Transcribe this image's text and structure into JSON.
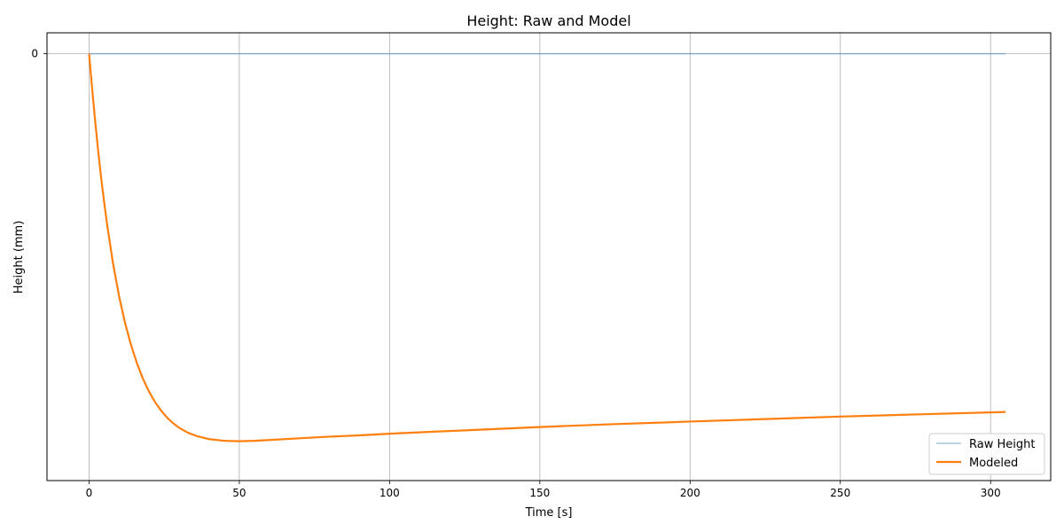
{
  "chart_data": {
    "type": "line",
    "title": "Height: Raw and Model",
    "xlabel": "Time [s]",
    "ylabel": "Height (mm)",
    "xlim": [
      -14,
      320
    ],
    "ylim": [
      -1.02,
      0.05
    ],
    "x_ticks": [
      0,
      50,
      100,
      150,
      200,
      250,
      300
    ],
    "x_tick_labels": [
      "0",
      "50",
      "100",
      "150",
      "200",
      "250",
      "300"
    ],
    "y_ticks": [
      0
    ],
    "y_tick_labels": [
      "0"
    ],
    "grid": true,
    "legend": "lower-right",
    "series": [
      {
        "name": "Raw Height",
        "color": "#1f77b4",
        "opacity": 0.4,
        "x": [
          0,
          305
        ],
        "y": [
          0,
          0
        ]
      },
      {
        "name": "Modeled",
        "color": "#ff7f0e",
        "x": [
          0,
          1,
          2,
          3,
          4,
          5,
          6,
          8,
          10,
          12,
          14,
          16,
          18,
          20,
          22,
          24,
          26,
          28,
          30,
          33,
          36,
          40,
          45,
          50,
          55,
          60,
          70,
          80,
          90,
          100,
          125,
          150,
          175,
          200,
          225,
          250,
          275,
          305
        ],
        "y": [
          0,
          -0.081,
          -0.159,
          -0.23,
          -0.295,
          -0.354,
          -0.408,
          -0.502,
          -0.58,
          -0.644,
          -0.697,
          -0.741,
          -0.778,
          -0.808,
          -0.833,
          -0.853,
          -0.87,
          -0.883,
          -0.894,
          -0.906,
          -0.914,
          -0.921,
          -0.925,
          -0.926,
          -0.925,
          -0.923,
          -0.919,
          -0.915,
          -0.912,
          -0.908,
          -0.9,
          -0.892,
          -0.885,
          -0.879,
          -0.873,
          -0.867,
          -0.862,
          -0.856
        ]
      }
    ]
  }
}
